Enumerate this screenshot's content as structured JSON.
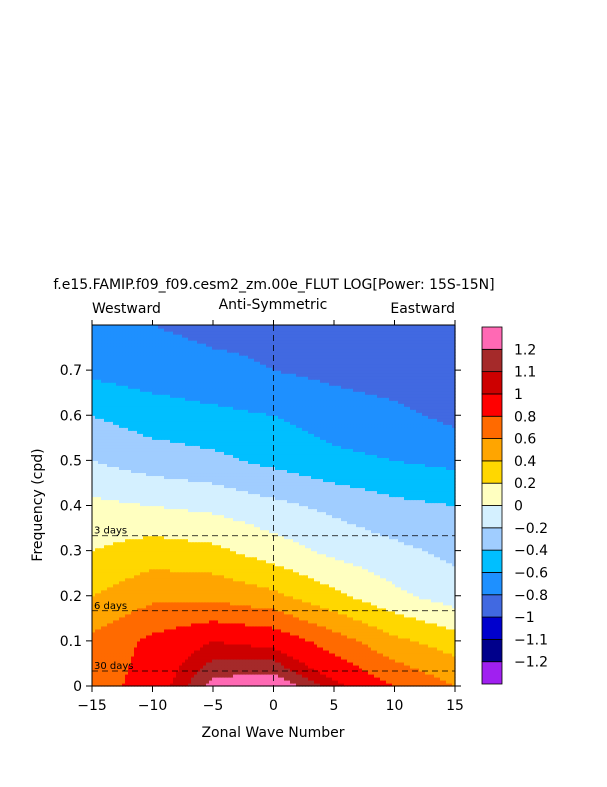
{
  "chart_data": {
    "type": "heatmap",
    "title": "f.e15.FAMIP.f09_f09.cesm2_zm.00e_FLUT LOG[Power: 15S-15N]",
    "subtitle_left": "Westward",
    "subtitle_center": "Anti-Symmetric",
    "subtitle_right": "Eastward",
    "xlabel": "Zonal Wave Number",
    "ylabel": "Frequency (cpd)",
    "xlim": [
      -15,
      15
    ],
    "ylim": [
      0,
      0.8
    ],
    "xticks": [
      "-15",
      "-10",
      "-5",
      "0",
      "5",
      "10",
      "15"
    ],
    "yticks": [
      "0",
      "0.1",
      "0.2",
      "0.3",
      "0.4",
      "0.5",
      "0.6",
      "0.7"
    ],
    "period_lines": [
      {
        "label": "3 days",
        "freq": 0.333
      },
      {
        "label": "6 days",
        "freq": 0.1667
      },
      {
        "label": "30 days",
        "freq": 0.0333
      }
    ],
    "colorbar": {
      "levels": [
        "-1.2",
        "-1.1",
        "-1",
        "-0.8",
        "-0.6",
        "-0.4",
        "-0.2",
        "0",
        "0.2",
        "0.4",
        "0.6",
        "0.8",
        "1",
        "1.1",
        "1.2"
      ],
      "colors": [
        "#a020f0",
        "#00008b",
        "#0000cd",
        "#4169e1",
        "#1e90ff",
        "#00bfff",
        "#a0cdff",
        "#d4f0ff",
        "#ffffc0",
        "#ffd700",
        "#ffa500",
        "#ff6a00",
        "#ff0000",
        "#cd0000",
        "#a52a2a",
        "#ff69b4"
      ]
    },
    "levels": [
      -1.2,
      -1.1,
      -1,
      -0.8,
      -0.6,
      -0.4,
      -0.2,
      0,
      0.2,
      0.4,
      0.6,
      0.8,
      1,
      1.1,
      1.2
    ],
    "field_description": {
      "k": [
        -15,
        -10,
        -5,
        0,
        5,
        10,
        15
      ],
      "freq": [
        0,
        0.1,
        0.2,
        0.3,
        0.4,
        0.5,
        0.6,
        0.7,
        0.8
      ],
      "values": [
        [
          0.7,
          0.9,
          1.25,
          1.3,
          1.05,
          0.8,
          0.6
        ],
        [
          0.65,
          0.85,
          1.0,
          0.95,
          0.7,
          0.45,
          0.3
        ],
        [
          0.4,
          0.55,
          0.55,
          0.45,
          0.25,
          0.05,
          -0.1
        ],
        [
          0.2,
          0.3,
          0.25,
          0.1,
          -0.05,
          -0.15,
          -0.25
        ],
        [
          0.05,
          0.0,
          -0.05,
          -0.15,
          -0.25,
          -0.35,
          -0.4
        ],
        [
          -0.2,
          -0.3,
          -0.35,
          -0.45,
          -0.55,
          -0.6,
          -0.65
        ],
        [
          -0.4,
          -0.5,
          -0.55,
          -0.6,
          -0.7,
          -0.75,
          -0.85
        ],
        [
          -0.65,
          -0.7,
          -0.75,
          -0.8,
          -0.85,
          -0.9,
          -0.95
        ],
        [
          -0.75,
          -0.8,
          -0.85,
          -0.85,
          -0.9,
          -0.95,
          -1.0
        ]
      ]
    }
  }
}
